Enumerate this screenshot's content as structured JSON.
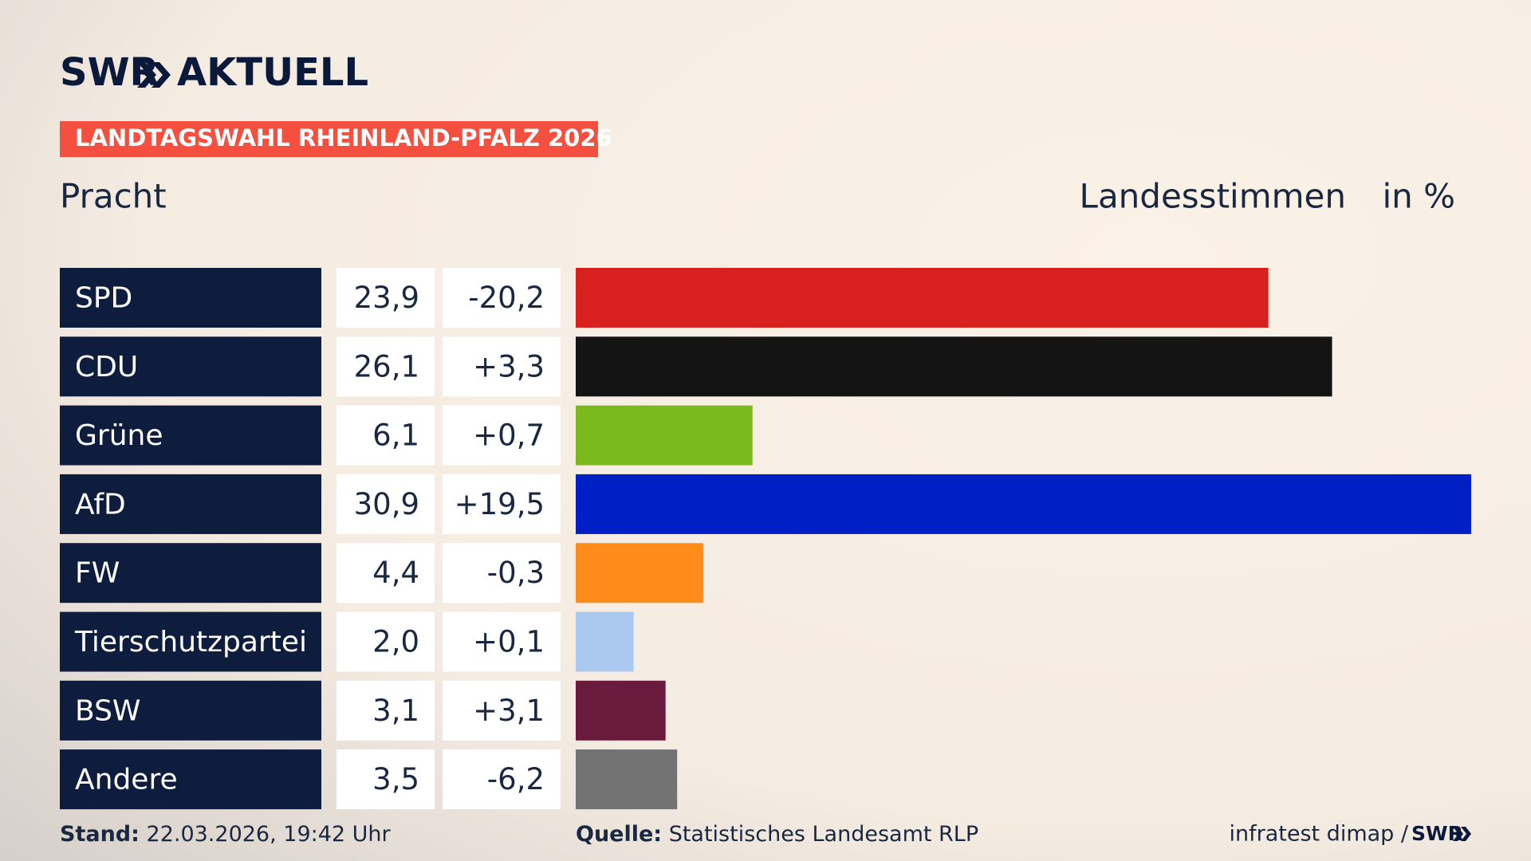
{
  "brand": {
    "name": "SWR",
    "section": "AKTUELL"
  },
  "chart_data": {
    "type": "bar",
    "title": "LANDTAGSWAHL RHEINLAND-PFALZ 2026",
    "subtitle": "Pracht",
    "measure": "Landesstimmen",
    "unit": "in %",
    "categories": [
      "SPD",
      "CDU",
      "Grüne",
      "AfD",
      "FW",
      "Tierschutzpartei",
      "BSW",
      "Andere"
    ],
    "values": [
      23.9,
      26.1,
      6.1,
      30.9,
      4.4,
      2.0,
      3.1,
      3.5
    ],
    "value_labels": [
      "23,9",
      "26,1",
      "6,1",
      "30,9",
      "4,4",
      "2,0",
      "3,1",
      "3,5"
    ],
    "changes": {
      "values": [
        -20.2,
        3.3,
        0.7,
        19.5,
        -0.3,
        0.1,
        3.1,
        -6.2
      ],
      "value_labels": [
        "-20,2",
        "+3,3",
        "+0,7",
        "+19,5",
        "-0,3",
        "+0,1",
        "+3,1",
        "-6,2"
      ]
    },
    "colors": [
      "#d8201f",
      "#141414",
      "#7aba1e",
      "#0020c6",
      "#ff8c1a",
      "#abc8ef",
      "#6a1a3c",
      "#737373"
    ],
    "xlim": [
      0,
      30.9
    ]
  },
  "footer": {
    "stand_label": "Stand:",
    "stand": "22.03.2026, 19:42 Uhr",
    "source_label": "Quelle:",
    "source": "Statistisches Landesamt RLP",
    "credit": "infratest dimap /",
    "credit_brand": "SWR"
  }
}
